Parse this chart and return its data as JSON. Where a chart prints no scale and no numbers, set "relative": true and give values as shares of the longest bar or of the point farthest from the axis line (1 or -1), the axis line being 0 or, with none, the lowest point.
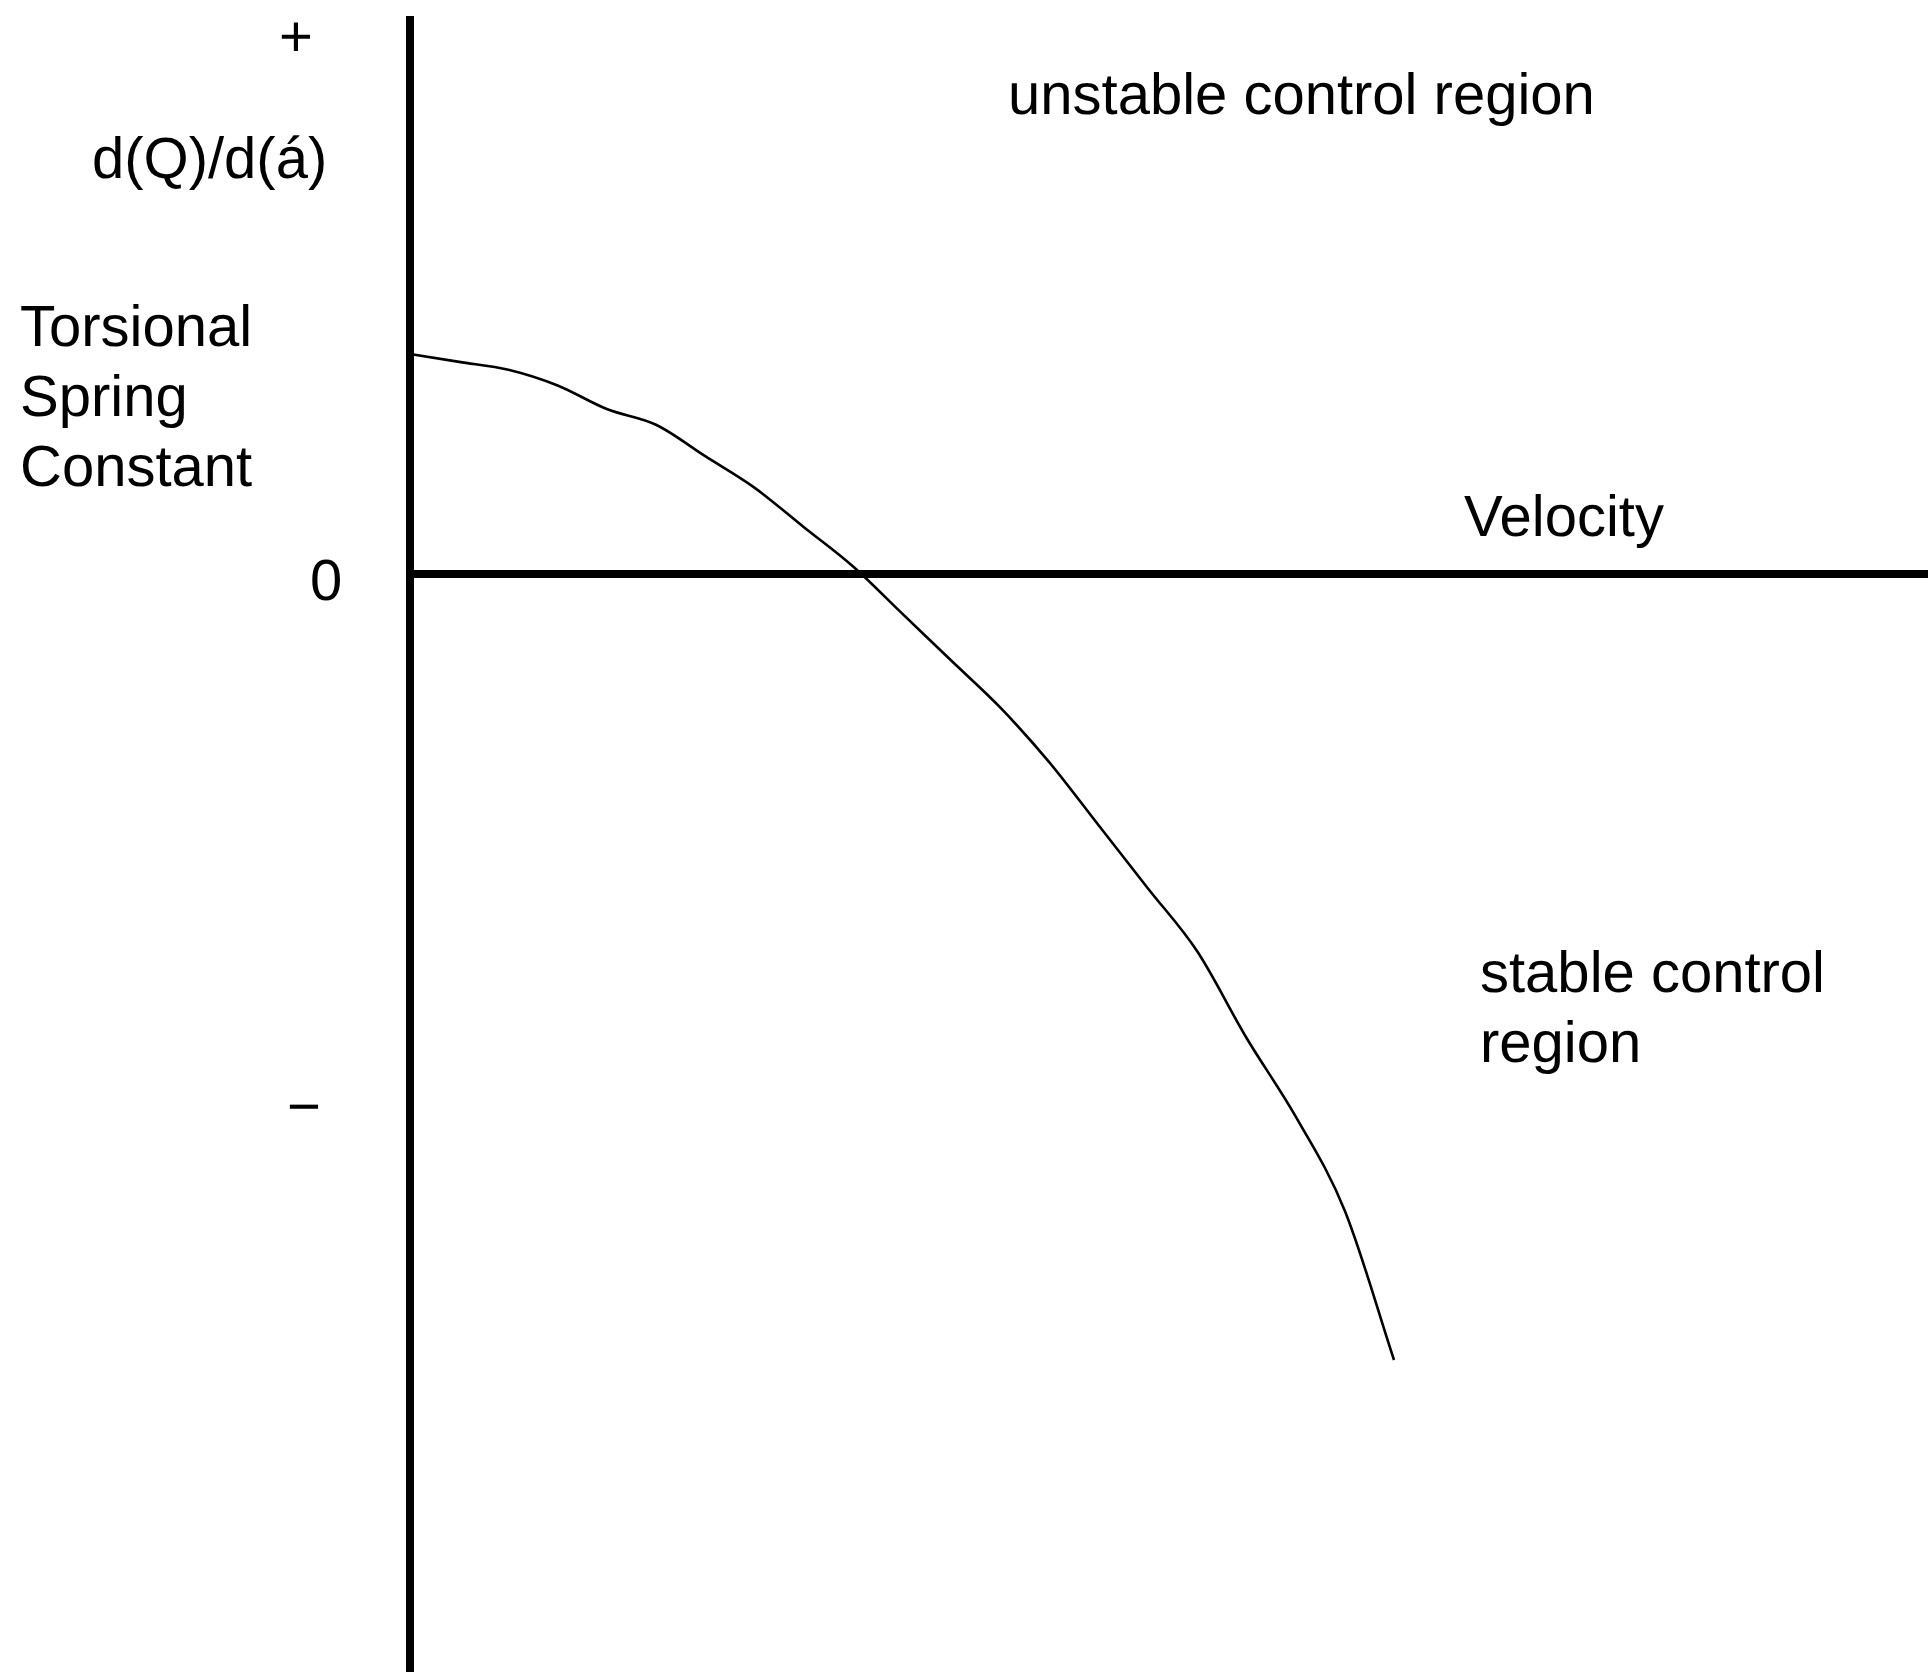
{
  "chart_data": {
    "type": "line",
    "relative": true,
    "xlabel": "Velocity",
    "annotations": [
      "+",
      "d(Q)/d(á)",
      "Torsional Spring Constant",
      "0",
      "−",
      "unstable control region",
      "stable control region"
    ],
    "categories": [
      null,
      null,
      null,
      null,
      null,
      null,
      null,
      null,
      null,
      null,
      null,
      null,
      null,
      null,
      null,
      null,
      null,
      null,
      null,
      null,
      null,
      null,
      null,
      null,
      null,
      null,
      null,
      null,
      null,
      null,
      null
    ],
    "series": [
      {
        "color": "#000000",
        "values": [
          0.28,
          0.27,
          0.26,
          0.24,
          0.21,
          0.19,
          0.15,
          0.11,
          0.06,
          0.01,
          -0.05,
          -0.11,
          -0.17,
          -0.24,
          -0.32,
          -0.4,
          -0.48,
          -0.59,
          -0.69,
          -0.81,
          -1,
          null,
          null,
          null,
          null,
          null,
          null,
          null,
          null,
          null,
          null
        ]
      }
    ],
    "ref_lines": [
      {
        "axis": "y",
        "value": 0
      }
    ],
    "grid": false,
    "legend": false,
    "marker": "none",
    "line_style": "solid"
  }
}
